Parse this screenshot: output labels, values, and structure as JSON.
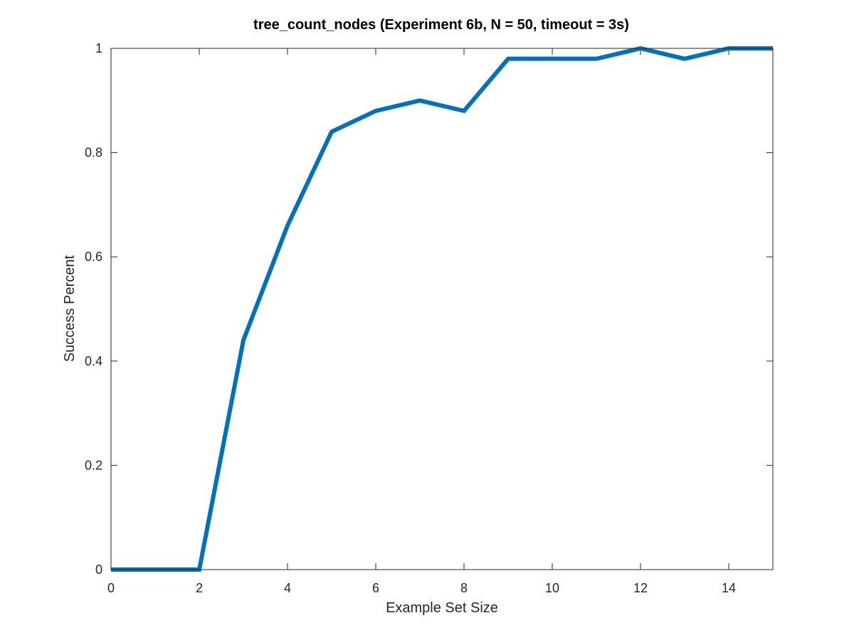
{
  "chart_data": {
    "type": "line",
    "title": "tree_count_nodes (Experiment 6b, N = 50, timeout = 3s)",
    "xlabel": "Example Set Size",
    "ylabel": "Success Percent",
    "xlim": [
      0,
      15
    ],
    "ylim": [
      0,
      1
    ],
    "xticks": [
      0,
      2,
      4,
      6,
      8,
      10,
      12,
      14
    ],
    "xtick_labels": [
      "0",
      "2",
      "4",
      "6",
      "8",
      "10",
      "12",
      "14"
    ],
    "yticks": [
      0,
      0.2,
      0.4,
      0.6,
      0.8,
      1
    ],
    "ytick_labels": [
      "0",
      "0.2",
      "0.4",
      "0.6",
      "0.8",
      "1"
    ],
    "grid": false,
    "series": [
      {
        "color": "#0072BD",
        "x": [
          0,
          1,
          2,
          3,
          4,
          5,
          6,
          7,
          8,
          9,
          10,
          11,
          12,
          13,
          14,
          15
        ],
        "y": [
          0,
          0,
          0,
          0.44,
          0.66,
          0.84,
          0.88,
          0.9,
          0.88,
          0.98,
          0.98,
          0.98,
          1.0,
          0.98,
          1.0,
          1.0
        ]
      }
    ]
  }
}
